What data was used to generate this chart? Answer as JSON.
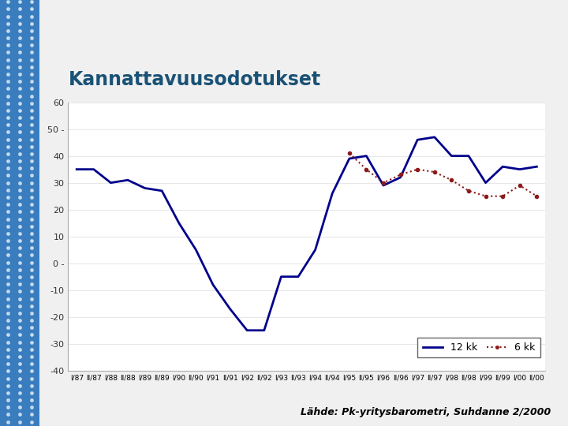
{
  "title": "Kannattavuusodotukset",
  "subtitle": "Lähde: Pk-yritysbarometri, Suhdanne 2/2000",
  "background_color": "#f0f0f0",
  "plot_bg_color": "#ffffff",
  "title_color": "#1a5276",
  "line1_color": "#00008B",
  "line2_color": "#8B1a1a",
  "ylim": [
    -40,
    60
  ],
  "yticks": [
    -40,
    -30,
    -20,
    -10,
    0,
    10,
    20,
    30,
    40,
    50,
    60
  ],
  "legend_label1": "12 kk",
  "legend_label2": "6 kk",
  "x_labels": [
    "I/87",
    "II/87",
    "I/88",
    "II/88",
    "I/89",
    "II/89",
    "I/90",
    "II/90",
    "I/91",
    "II/91",
    "I/92",
    "II/92",
    "I/93",
    "II/93",
    "I/94",
    "II/94",
    "I/95",
    "II/95",
    "I/96",
    "II/96",
    "I/97",
    "II/97",
    "I/98",
    "II/98",
    "I/99",
    "II/99",
    "I/00",
    "II/00"
  ],
  "line1_values": [
    35,
    35,
    30,
    31,
    28,
    27,
    15,
    5,
    -8,
    -17,
    -25,
    -25,
    -5,
    -5,
    5,
    26,
    39,
    40,
    29,
    32,
    46,
    47,
    40,
    40,
    30,
    36,
    35,
    36
  ],
  "line2_values": [
    null,
    null,
    null,
    null,
    null,
    null,
    null,
    null,
    null,
    null,
    null,
    null,
    null,
    null,
    null,
    null,
    41,
    35,
    30,
    33,
    35,
    34,
    31,
    27,
    25,
    25,
    29,
    25
  ]
}
